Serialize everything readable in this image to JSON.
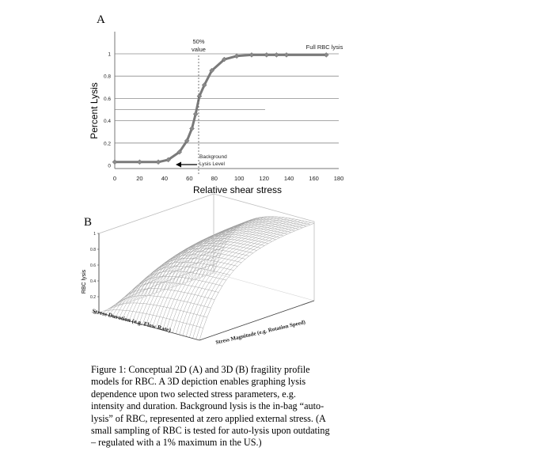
{
  "panel_a": {
    "letter": "A",
    "chart_data": {
      "type": "line",
      "title": "",
      "xlabel": "Relative shear stress",
      "ylabel": "Percent Lysis",
      "xlim": [
        0,
        180
      ],
      "ylim": [
        0,
        1
      ],
      "x_ticks": [
        "0",
        "20",
        "40",
        "60",
        "80",
        "100",
        "120",
        "140",
        "160",
        "180"
      ],
      "y_ticks": [
        "0",
        "0.2",
        "0.4",
        "0.6",
        "0.8",
        "1"
      ],
      "grid": true,
      "series": [
        {
          "x": [
            0,
            20,
            35,
            43,
            52,
            58,
            62,
            65,
            68,
            72,
            78,
            88,
            98,
            110,
            122,
            130,
            138,
            170
          ],
          "y": [
            0.03,
            0.03,
            0.03,
            0.05,
            0.12,
            0.22,
            0.33,
            0.46,
            0.62,
            0.72,
            0.85,
            0.95,
            0.98,
            0.99,
            0.99,
            0.99,
            0.99,
            0.99
          ]
        }
      ],
      "annotations": {
        "fifty_percent": [
          "50%",
          "value"
        ],
        "full_lysis": "Full RBC lysis",
        "background": [
          "Background",
          "Lysis Level"
        ]
      }
    }
  },
  "panel_b": {
    "letter": "B",
    "chart_data": {
      "type": "surface",
      "zlabel": "RBC lysis",
      "z_ticks": [
        "0",
        "0.2",
        "0.4",
        "0.6",
        "0.8",
        "1"
      ],
      "xlabel": "Stress Duration (e.g. Flow Rate)",
      "ylabel": "Stress Magnitude (e.g. Rotation Speed)"
    }
  },
  "caption": [
    "Figure 1: Conceptual 2D (A) and 3D (B) fragility profile",
    "models for RBC. A 3D depiction enables graphing lysis",
    "dependence upon two selected stress parameters, e.g.",
    "intensity and duration. Background lysis is the in-bag “auto-",
    "lysis” of RBC, represented at zero applied external stress. (A",
    "small sampling of RBC is tested for auto-lysis upon outdating",
    "– regulated with a 1% maximum in the US.)"
  ]
}
